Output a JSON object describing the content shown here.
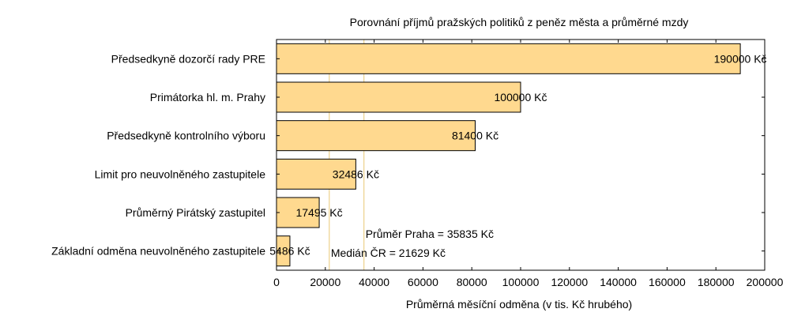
{
  "chart_data": {
    "type": "bar",
    "orientation": "horizontal",
    "title": "Porovnání příjmů pražských politiků z peněz města a průměrné mzdy",
    "xlabel": "Průměrná měsíční odměna (v tis. Kč hrubého)",
    "ylabel": "",
    "xlim": [
      0,
      200000
    ],
    "x_ticks": [
      "0",
      "20000",
      "40000",
      "60000",
      "80000",
      "100000",
      "120000",
      "140000",
      "160000",
      "180000",
      "200000"
    ],
    "categories": [
      "Předsedkyně dozorčí rady PRE",
      "Primátorka hl. m. Prahy",
      "Předsedkyně kontrolního výboru",
      "Limit pro neuvolněného zastupitele",
      "Průměrný Pirátský zastupitel",
      "Základní odměna neuvolněného zastupitele"
    ],
    "values": [
      190000,
      100000,
      81400,
      32486,
      17495,
      5486
    ],
    "data_labels": [
      "190000 Kč",
      "100000 Kč",
      "81400 Kč",
      "32486 Kč",
      "17495 Kč",
      "5486 Kč"
    ],
    "reference_lines": [
      {
        "value": 35835,
        "label": "Průměr Praha = 35835 Kč"
      },
      {
        "value": 21629,
        "label": "Medián ČR = 21629 Kč"
      }
    ],
    "grid": false,
    "colors": {
      "bar_fill": "#FFD98F",
      "bar_stroke": "#000000",
      "ref_line": "#E8C873",
      "axis": "#000000"
    }
  }
}
